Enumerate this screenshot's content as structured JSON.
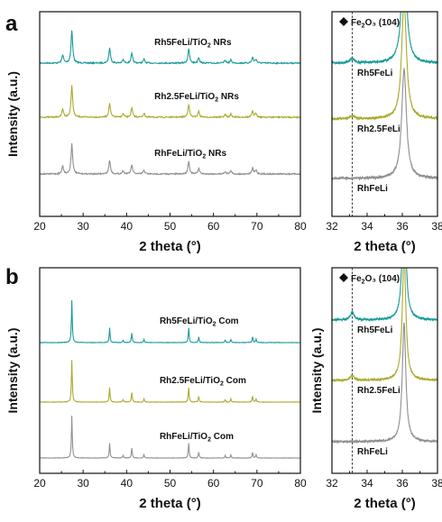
{
  "colors": {
    "teal": "#1a9a9a",
    "olive": "#aaaa2e",
    "gray": "#8f8f8f",
    "axis": "#111111"
  },
  "chart_data": [
    {
      "panel": "a",
      "type": "line",
      "xlabel": "2 theta (°)",
      "ylabel": "Intensity (a.u.)",
      "xlim": [
        20,
        80
      ],
      "xticks": [
        "20",
        "30",
        "40",
        "50",
        "60",
        "70",
        "80"
      ],
      "series": [
        {
          "name": "Rh5FeLi/TiO₂ NRs",
          "color": "teal",
          "peaks": [
            [
              25.3,
              0.65
            ],
            [
              27.4,
              2.6
            ],
            [
              36.1,
              1.2
            ],
            [
              39.2,
              0.25
            ],
            [
              41.2,
              0.75
            ],
            [
              44.0,
              0.3
            ],
            [
              54.3,
              1.1
            ],
            [
              56.6,
              0.45
            ],
            [
              62.7,
              0.2
            ],
            [
              64.0,
              0.25
            ],
            [
              69.0,
              0.45
            ],
            [
              69.8,
              0.3
            ]
          ]
        },
        {
          "name": "Rh2.5FeLi/TiO₂ NRs",
          "color": "olive",
          "peaks": [
            [
              25.3,
              0.65
            ],
            [
              27.4,
              2.5
            ],
            [
              36.1,
              1.1
            ],
            [
              39.2,
              0.25
            ],
            [
              41.2,
              0.7
            ],
            [
              44.0,
              0.3
            ],
            [
              54.3,
              1.0
            ],
            [
              56.6,
              0.45
            ],
            [
              62.7,
              0.2
            ],
            [
              64.0,
              0.25
            ],
            [
              69.0,
              0.45
            ],
            [
              69.8,
              0.3
            ]
          ]
        },
        {
          "name": "RhFeLi/TiO₂ NRs",
          "color": "gray",
          "peaks": [
            [
              25.3,
              0.65
            ],
            [
              27.4,
              2.4
            ],
            [
              36.1,
              1.1
            ],
            [
              39.2,
              0.25
            ],
            [
              41.2,
              0.7
            ],
            [
              44.0,
              0.3
            ],
            [
              54.3,
              1.0
            ],
            [
              56.6,
              0.45
            ],
            [
              62.7,
              0.2
            ],
            [
              64.0,
              0.25
            ],
            [
              69.0,
              0.45
            ],
            [
              69.8,
              0.3
            ]
          ]
        }
      ]
    },
    {
      "panel": "a-inset",
      "type": "line",
      "xlabel": "2 theta (°)",
      "ylabel": "",
      "xlim": [
        32,
        38
      ],
      "xticks": [
        "32",
        "34",
        "36",
        "38"
      ],
      "annotation": "Fe₂O₃ (104)",
      "reference_line_x": 33.15,
      "series": [
        {
          "name": "Rh5FeLi",
          "color": "teal",
          "peaks": [
            [
              33.15,
              0.12
            ],
            [
              36.1,
              3.5
            ]
          ]
        },
        {
          "name": "Rh2.5FeLi",
          "color": "olive",
          "peaks": [
            [
              33.15,
              0.08
            ],
            [
              36.1,
              3.5
            ]
          ]
        },
        {
          "name": "RhFeLi",
          "color": "gray",
          "peaks": [
            [
              36.1,
              3.2
            ]
          ]
        }
      ]
    },
    {
      "panel": "b",
      "type": "line",
      "xlabel": "2 theta (°)",
      "ylabel": "Intensity (a.u.)",
      "xlim": [
        20,
        80
      ],
      "xticks": [
        "20",
        "30",
        "40",
        "50",
        "60",
        "70",
        "80"
      ],
      "series": [
        {
          "name": "Rh5FeLi/TiO₂ Com",
          "color": "teal",
          "peaks": [
            [
              27.4,
              2.6
            ],
            [
              36.1,
              0.9
            ],
            [
              39.2,
              0.15
            ],
            [
              41.2,
              0.6
            ],
            [
              44.0,
              0.2
            ],
            [
              54.3,
              0.9
            ],
            [
              56.6,
              0.35
            ],
            [
              62.7,
              0.15
            ],
            [
              64.0,
              0.2
            ],
            [
              69.0,
              0.35
            ],
            [
              69.8,
              0.2
            ]
          ]
        },
        {
          "name": "Rh2.5FeLi/TiO₂ Com",
          "color": "olive",
          "peaks": [
            [
              27.4,
              2.6
            ],
            [
              36.1,
              0.9
            ],
            [
              39.2,
              0.15
            ],
            [
              41.2,
              0.6
            ],
            [
              44.0,
              0.2
            ],
            [
              54.3,
              0.9
            ],
            [
              56.6,
              0.35
            ],
            [
              62.7,
              0.15
            ],
            [
              64.0,
              0.2
            ],
            [
              69.0,
              0.35
            ],
            [
              69.8,
              0.2
            ]
          ]
        },
        {
          "name": "RhFeLi/TiO₂ Com",
          "color": "gray",
          "peaks": [
            [
              27.4,
              2.6
            ],
            [
              36.1,
              0.9
            ],
            [
              39.2,
              0.15
            ],
            [
              41.2,
              0.6
            ],
            [
              44.0,
              0.2
            ],
            [
              54.3,
              0.9
            ],
            [
              56.6,
              0.35
            ],
            [
              62.7,
              0.15
            ],
            [
              64.0,
              0.2
            ],
            [
              69.0,
              0.35
            ],
            [
              69.8,
              0.2
            ]
          ]
        }
      ]
    },
    {
      "panel": "b-inset",
      "type": "line",
      "xlabel": "2 theta (°)",
      "ylabel": "Intensity (a.u.)",
      "xlim": [
        32,
        38
      ],
      "xticks": [
        "32",
        "34",
        "36",
        "38"
      ],
      "annotation": "Fe₂O₃ (104)",
      "reference_line_x": 33.15,
      "series": [
        {
          "name": "Rh5FeLi",
          "color": "teal",
          "peaks": [
            [
              33.15,
              0.22
            ],
            [
              36.1,
              3.5
            ]
          ]
        },
        {
          "name": "Rh2.5FeLi",
          "color": "olive",
          "peaks": [
            [
              33.15,
              0.15
            ],
            [
              36.1,
              3.5
            ]
          ]
        },
        {
          "name": "RhFeLi",
          "color": "gray",
          "peaks": [
            [
              36.1,
              3.3
            ]
          ]
        }
      ]
    }
  ],
  "panel_labels": [
    "a",
    "b"
  ]
}
